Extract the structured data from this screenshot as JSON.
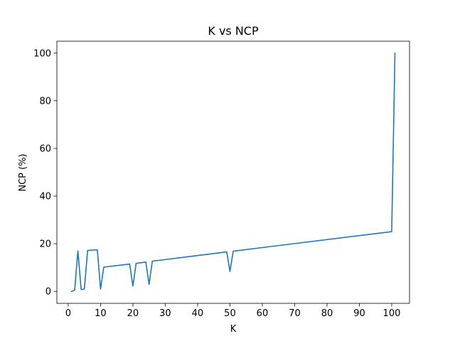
{
  "chart_data": {
    "type": "line",
    "title": "K vs NCP",
    "xlabel": "K",
    "ylabel": "NCP (%)",
    "xlim": [
      -3.5,
      105.5
    ],
    "ylim": [
      -5,
      105
    ],
    "xticks": [
      0,
      10,
      20,
      30,
      40,
      50,
      60,
      70,
      80,
      90,
      100
    ],
    "yticks": [
      0,
      20,
      40,
      60,
      80,
      100
    ],
    "xtick_labels": [
      "0",
      "10",
      "20",
      "30",
      "40",
      "50",
      "60",
      "70",
      "80",
      "90",
      "100"
    ],
    "ytick_labels": [
      "0",
      "20",
      "40",
      "60",
      "80",
      "100"
    ],
    "grid": false,
    "legend": "none",
    "series": [
      {
        "color": "#1f77b4",
        "x": [
          1,
          2,
          3,
          4,
          5,
          6,
          9,
          10,
          11,
          19,
          20,
          21,
          24,
          25,
          26,
          49,
          50,
          51,
          100,
          101
        ],
        "y": [
          0,
          0.5,
          17,
          0.8,
          1,
          17.2,
          17.5,
          1,
          10.2,
          11.5,
          2.3,
          11.8,
          12.3,
          3,
          12.7,
          16.6,
          8.4,
          16.9,
          25.1,
          100
        ]
      }
    ]
  }
}
